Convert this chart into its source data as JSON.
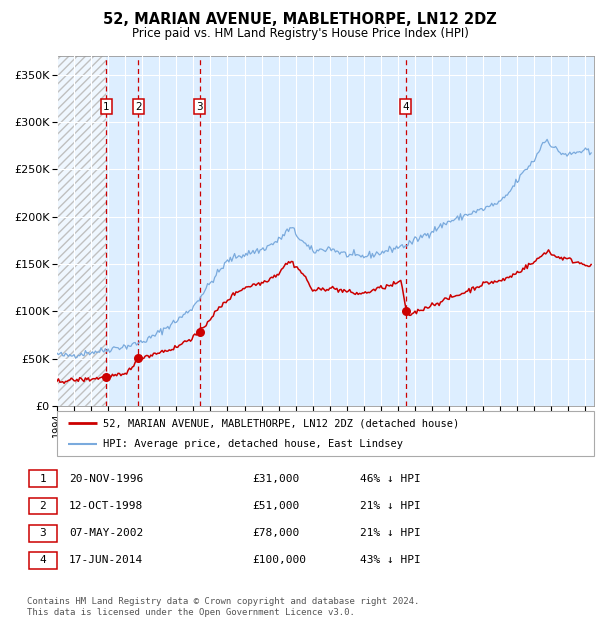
{
  "title": "52, MARIAN AVENUE, MABLETHORPE, LN12 2DZ",
  "subtitle": "Price paid vs. HM Land Registry's House Price Index (HPI)",
  "xlim_start": 1994.0,
  "xlim_end": 2025.5,
  "ylim": [
    0,
    370000
  ],
  "yticks": [
    0,
    50000,
    100000,
    150000,
    200000,
    250000,
    300000,
    350000
  ],
  "ytick_labels": [
    "£0",
    "£50K",
    "£100K",
    "£150K",
    "£200K",
    "£250K",
    "£300K",
    "£350K"
  ],
  "xticks": [
    1994,
    1995,
    1996,
    1997,
    1998,
    1999,
    2000,
    2001,
    2002,
    2003,
    2004,
    2005,
    2006,
    2007,
    2008,
    2009,
    2010,
    2011,
    2012,
    2013,
    2014,
    2015,
    2016,
    2017,
    2018,
    2019,
    2020,
    2021,
    2022,
    2023,
    2024,
    2025
  ],
  "hpi_line_color": "#7aaadd",
  "price_line_color": "#cc0000",
  "vline_color": "#cc0000",
  "bg_color": "#ddeeff",
  "sale_dates": [
    1996.89,
    1998.78,
    2002.36,
    2014.46
  ],
  "sale_prices": [
    31000,
    51000,
    78000,
    100000
  ],
  "sale_labels": [
    "1",
    "2",
    "3",
    "4"
  ],
  "legend_line1": "52, MARIAN AVENUE, MABLETHORPE, LN12 2DZ (detached house)",
  "legend_line2": "HPI: Average price, detached house, East Lindsey",
  "table_rows": [
    [
      "1",
      "20-NOV-1996",
      "£31,000",
      "46% ↓ HPI"
    ],
    [
      "2",
      "12-OCT-1998",
      "£51,000",
      "21% ↓ HPI"
    ],
    [
      "3",
      "07-MAY-2002",
      "£78,000",
      "21% ↓ HPI"
    ],
    [
      "4",
      "17-JUN-2014",
      "£100,000",
      "43% ↓ HPI"
    ]
  ],
  "footer": "Contains HM Land Registry data © Crown copyright and database right 2024.\nThis data is licensed under the Open Government Licence v3.0.",
  "hpi_keypoints": [
    [
      1994.0,
      55000
    ],
    [
      1994.5,
      53000
    ],
    [
      1995.0,
      54000
    ],
    [
      1995.5,
      55500
    ],
    [
      1996.0,
      57000
    ],
    [
      1996.5,
      58000
    ],
    [
      1997.0,
      60000
    ],
    [
      1997.5,
      62000
    ],
    [
      1998.0,
      63000
    ],
    [
      1998.5,
      65000
    ],
    [
      1999.0,
      68000
    ],
    [
      1999.5,
      72000
    ],
    [
      2000.0,
      78000
    ],
    [
      2000.5,
      84000
    ],
    [
      2001.0,
      90000
    ],
    [
      2001.5,
      97000
    ],
    [
      2002.0,
      105000
    ],
    [
      2002.5,
      118000
    ],
    [
      2003.0,
      130000
    ],
    [
      2003.5,
      142000
    ],
    [
      2004.0,
      153000
    ],
    [
      2004.5,
      158000
    ],
    [
      2005.0,
      160000
    ],
    [
      2005.5,
      163000
    ],
    [
      2006.0,
      165000
    ],
    [
      2006.5,
      170000
    ],
    [
      2007.0,
      175000
    ],
    [
      2007.5,
      185000
    ],
    [
      2007.8,
      188000
    ],
    [
      2008.0,
      182000
    ],
    [
      2008.5,
      172000
    ],
    [
      2009.0,
      163000
    ],
    [
      2009.5,
      165000
    ],
    [
      2010.0,
      167000
    ],
    [
      2010.5,
      163000
    ],
    [
      2011.0,
      160000
    ],
    [
      2011.5,
      158000
    ],
    [
      2012.0,
      158000
    ],
    [
      2012.5,
      160000
    ],
    [
      2013.0,
      162000
    ],
    [
      2013.5,
      165000
    ],
    [
      2014.0,
      168000
    ],
    [
      2014.5,
      170000
    ],
    [
      2015.0,
      175000
    ],
    [
      2015.5,
      180000
    ],
    [
      2016.0,
      185000
    ],
    [
      2016.5,
      190000
    ],
    [
      2017.0,
      195000
    ],
    [
      2017.5,
      198000
    ],
    [
      2018.0,
      202000
    ],
    [
      2018.5,
      205000
    ],
    [
      2019.0,
      208000
    ],
    [
      2019.5,
      212000
    ],
    [
      2020.0,
      215000
    ],
    [
      2020.5,
      225000
    ],
    [
      2021.0,
      238000
    ],
    [
      2021.5,
      250000
    ],
    [
      2022.0,
      260000
    ],
    [
      2022.5,
      278000
    ],
    [
      2022.8,
      282000
    ],
    [
      2023.0,
      275000
    ],
    [
      2023.5,
      268000
    ],
    [
      2024.0,
      265000
    ],
    [
      2024.5,
      268000
    ],
    [
      2025.0,
      270000
    ],
    [
      2025.4,
      265000
    ]
  ],
  "pp_keypoints": [
    [
      1994.0,
      26000
    ],
    [
      1995.0,
      27500
    ],
    [
      1996.0,
      28500
    ],
    [
      1996.89,
      31000
    ],
    [
      1997.0,
      31500
    ],
    [
      1997.5,
      32000
    ],
    [
      1998.0,
      33000
    ],
    [
      1998.78,
      51000
    ],
    [
      1999.0,
      52000
    ],
    [
      1999.5,
      54000
    ],
    [
      2000.0,
      57000
    ],
    [
      2000.5,
      59000
    ],
    [
      2001.0,
      62000
    ],
    [
      2001.5,
      68000
    ],
    [
      2002.0,
      73000
    ],
    [
      2002.36,
      78000
    ],
    [
      2002.8,
      88000
    ],
    [
      2003.0,
      93000
    ],
    [
      2003.5,
      103000
    ],
    [
      2004.0,
      112000
    ],
    [
      2004.5,
      120000
    ],
    [
      2005.0,
      125000
    ],
    [
      2005.5,
      128000
    ],
    [
      2006.0,
      130000
    ],
    [
      2006.5,
      135000
    ],
    [
      2007.0,
      140000
    ],
    [
      2007.3,
      148000
    ],
    [
      2007.7,
      153000
    ],
    [
      2008.0,
      148000
    ],
    [
      2008.5,
      138000
    ],
    [
      2009.0,
      122000
    ],
    [
      2009.5,
      123000
    ],
    [
      2010.0,
      125000
    ],
    [
      2010.5,
      123000
    ],
    [
      2011.0,
      121000
    ],
    [
      2011.5,
      119000
    ],
    [
      2012.0,
      119000
    ],
    [
      2012.5,
      122000
    ],
    [
      2013.0,
      125000
    ],
    [
      2013.5,
      127000
    ],
    [
      2014.0,
      130000
    ],
    [
      2014.2,
      133000
    ],
    [
      2014.46,
      100000
    ],
    [
      2014.6,
      96000
    ],
    [
      2015.0,
      99000
    ],
    [
      2015.5,
      103000
    ],
    [
      2016.0,
      107000
    ],
    [
      2016.5,
      110000
    ],
    [
      2017.0,
      114000
    ],
    [
      2017.5,
      117000
    ],
    [
      2018.0,
      121000
    ],
    [
      2018.5,
      125000
    ],
    [
      2019.0,
      129000
    ],
    [
      2019.5,
      131000
    ],
    [
      2020.0,
      132000
    ],
    [
      2020.5,
      136000
    ],
    [
      2021.0,
      141000
    ],
    [
      2021.5,
      147000
    ],
    [
      2022.0,
      152000
    ],
    [
      2022.5,
      160000
    ],
    [
      2022.8,
      165000
    ],
    [
      2023.0,
      160000
    ],
    [
      2023.5,
      157000
    ],
    [
      2024.0,
      155000
    ],
    [
      2024.5,
      152000
    ],
    [
      2025.0,
      150000
    ],
    [
      2025.4,
      148000
    ]
  ]
}
